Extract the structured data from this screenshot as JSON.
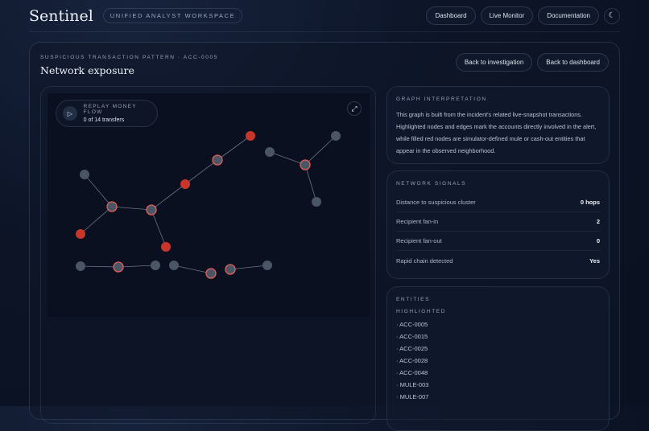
{
  "header": {
    "brand": "Sentinel",
    "tag": "UNIFIED ANALYST WORKSPACE",
    "nav": [
      "Dashboard",
      "Live Monitor",
      "Documentation"
    ],
    "theme_icon": "moon-icon"
  },
  "page": {
    "eyebrow": "SUSPICIOUS TRANSACTION PATTERN · ACC-0005",
    "title": "Network exposure",
    "actions": [
      "Back to investigation",
      "Back to dashboard"
    ]
  },
  "replay": {
    "label": "REPLAY MONEY FLOW",
    "progress": "0 of 14 transfers",
    "play_icon": "play-icon",
    "expand_icon": "expand-icon"
  },
  "graph": {
    "colors": {
      "mule": "#c8352b",
      "highlight_ring": "#e2625a",
      "node": "#4a5566",
      "edge": "#6b7485"
    },
    "nodes": [
      "normal",
      "highlighted",
      "highlighted",
      "mule",
      "mule",
      "mule",
      "highlighted",
      "mule",
      "normal",
      "highlighted",
      "normal",
      "normal",
      "normal",
      "highlighted",
      "normal",
      "normal",
      "highlighted",
      "highlighted",
      "normal"
    ],
    "edges": [
      [
        1,
        0
      ],
      [
        1,
        3
      ],
      [
        1,
        2
      ],
      [
        2,
        4
      ],
      [
        2,
        5
      ],
      [
        5,
        6
      ],
      [
        6,
        7
      ],
      [
        9,
        8
      ],
      [
        9,
        10
      ],
      [
        9,
        11
      ],
      [
        12,
        13
      ],
      [
        14,
        13
      ],
      [
        15,
        16
      ],
      [
        17,
        18
      ]
    ]
  },
  "interpretation": {
    "heading": "GRAPH INTERPRETATION",
    "text": "This graph is built from the incident's related live-snapshot transactions. Highlighted nodes and edges mark the accounts directly involved in the alert, while filled red nodes are simulator-defined mule or cash-out entities that appear in the observed neighborhood."
  },
  "signals": {
    "heading": "NETWORK SIGNALS",
    "rows": [
      {
        "label": "Distance to suspicious cluster",
        "value": "0 hops"
      },
      {
        "label": "Recipient fan-in",
        "value": "2"
      },
      {
        "label": "Recipient fan-out",
        "value": "0"
      },
      {
        "label": "Rapid chain detected",
        "value": "Yes"
      }
    ]
  },
  "entities": {
    "heading": "ENTITIES",
    "subheading": "HIGHLIGHTED",
    "items": [
      "· ACC-0005",
      "· ACC-0015",
      "· ACC-0025",
      "· ACC-0028",
      "· ACC-0048",
      "· MULE-003",
      "· MULE-007"
    ]
  }
}
